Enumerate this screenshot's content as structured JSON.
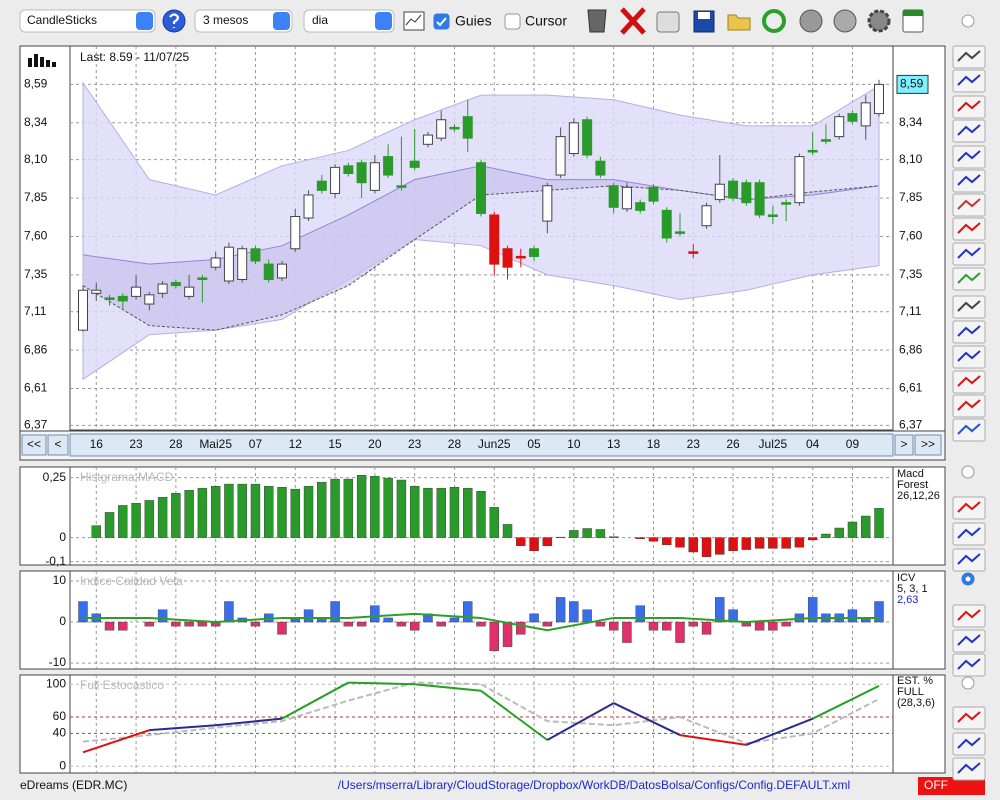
{
  "toolbar": {
    "chart_type": "CandleSticks",
    "period": "3 mesos",
    "interval": "dia",
    "guides_label": "Guies",
    "guides_checked": true,
    "cursor_label": "Cursor",
    "cursor_checked": false
  },
  "price_chart": {
    "type": "candlestick",
    "last": "Last: 8.59 - 11/07/25",
    "last_value": {
      "value": 8.59,
      "label": "8,59"
    },
    "ylim": [
      6.34,
      8.84
    ],
    "yticks": [
      {
        "value": 8.59,
        "label": "8,59"
      },
      {
        "value": 8.34,
        "label": "8,34"
      },
      {
        "value": 8.1,
        "label": "8,10"
      },
      {
        "value": 7.85,
        "label": "7,85"
      },
      {
        "value": 7.6,
        "label": "7,60"
      },
      {
        "value": 7.35,
        "label": "7,35"
      },
      {
        "value": 7.11,
        "label": "7,11"
      },
      {
        "value": 6.86,
        "label": "6,86"
      },
      {
        "value": 6.61,
        "label": "6,61"
      },
      {
        "value": 6.37,
        "label": "6,37"
      }
    ],
    "date_labels": [
      "16",
      "23",
      "28",
      "Mai25",
      "07",
      "12",
      "15",
      "20",
      "23",
      "28",
      "Jun25",
      "05",
      "10",
      "13",
      "18",
      "23",
      "26",
      "Jul25",
      "04",
      "09"
    ],
    "nav": [
      "<<",
      "<",
      ">",
      ">>"
    ],
    "open": [
      6.99,
      7.23,
      7.2,
      7.21,
      7.21,
      7.16,
      7.23,
      7.3,
      7.21,
      7.33,
      7.4,
      7.31,
      7.32,
      7.52,
      7.42,
      7.33,
      7.52,
      7.72,
      7.96,
      7.88,
      8.06,
      8.08,
      7.9,
      8.12,
      7.93,
      8.09,
      8.2,
      8.24,
      8.31,
      8.38,
      8.08,
      7.74,
      7.52,
      7.47,
      7.52,
      7.7,
      8.0,
      8.14,
      8.36,
      8.09,
      7.93,
      7.78,
      7.82,
      7.92,
      7.77,
      7.63,
      7.5,
      7.67,
      7.84,
      7.96,
      7.95,
      7.95,
      7.74,
      7.82,
      7.82,
      8.16,
      8.23,
      8.25,
      8.4,
      8.32,
      8.4
    ],
    "high": [
      7.28,
      7.3,
      7.22,
      7.23,
      7.35,
      7.24,
      7.31,
      7.32,
      7.35,
      7.35,
      7.5,
      7.56,
      7.54,
      7.54,
      7.45,
      7.44,
      7.78,
      7.9,
      8.0,
      8.07,
      8.08,
      8.1,
      8.13,
      8.2,
      8.25,
      8.3,
      8.28,
      8.42,
      8.33,
      8.49,
      8.1,
      7.76,
      7.54,
      7.52,
      7.54,
      7.95,
      8.31,
      8.37,
      8.38,
      8.12,
      7.95,
      7.95,
      7.84,
      7.94,
      7.79,
      7.75,
      7.55,
      7.82,
      8.13,
      7.98,
      7.97,
      7.97,
      7.8,
      7.84,
      8.14,
      8.28,
      8.33,
      8.4,
      8.42,
      8.52,
      8.62
    ],
    "low": [
      6.98,
      7.18,
      7.15,
      7.13,
      7.19,
      7.12,
      7.2,
      7.26,
      7.19,
      7.17,
      7.38,
      7.29,
      7.3,
      7.42,
      7.3,
      7.31,
      7.5,
      7.7,
      7.88,
      7.85,
      7.99,
      7.85,
      7.88,
      7.98,
      7.9,
      8.03,
      8.18,
      8.22,
      8.28,
      8.15,
      7.73,
      7.35,
      7.32,
      7.4,
      7.44,
      7.62,
      7.98,
      8.12,
      8.11,
      7.98,
      7.75,
      7.76,
      7.75,
      7.81,
      7.56,
      7.6,
      7.46,
      7.65,
      7.82,
      7.83,
      7.8,
      7.72,
      7.68,
      7.7,
      7.8,
      8.13,
      8.2,
      8.23,
      8.33,
      8.23,
      8.38
    ],
    "close": [
      7.25,
      7.25,
      7.19,
      7.18,
      7.27,
      7.22,
      7.29,
      7.28,
      7.27,
      7.32,
      7.46,
      7.53,
      7.52,
      7.44,
      7.32,
      7.42,
      7.73,
      7.87,
      7.9,
      8.05,
      8.01,
      7.95,
      8.08,
      8.0,
      7.92,
      8.05,
      8.26,
      8.36,
      8.3,
      8.24,
      7.75,
      7.42,
      7.4,
      7.46,
      7.47,
      7.93,
      8.25,
      8.34,
      8.13,
      8.0,
      7.79,
      7.92,
      7.77,
      7.83,
      7.59,
      7.62,
      7.49,
      7.8,
      7.94,
      7.85,
      7.82,
      7.74,
      7.73,
      7.81,
      8.12,
      8.15,
      8.22,
      8.38,
      8.35,
      8.47,
      8.59
    ],
    "fill": [
      "w",
      "w",
      "g",
      "g",
      "w",
      "w",
      "w",
      "g",
      "w",
      "g",
      "w",
      "w",
      "w",
      "g",
      "g",
      "w",
      "w",
      "w",
      "g",
      "w",
      "g",
      "g",
      "w",
      "g",
      "g",
      "g",
      "w",
      "w",
      "g",
      "g",
      "g",
      "r",
      "r",
      "r",
      "g",
      "w",
      "w",
      "w",
      "g",
      "g",
      "g",
      "w",
      "g",
      "g",
      "g",
      "g",
      "r",
      "w",
      "w",
      "g",
      "g",
      "g",
      "g",
      "g",
      "w",
      "g",
      "g",
      "w",
      "g",
      "w",
      "w"
    ],
    "palette": {
      "w": "#ffffff",
      "g": "#2a9a2a",
      "r": "#dd1111"
    },
    "bands": {
      "x": [
        0,
        5,
        10,
        15,
        20,
        25,
        30,
        35,
        40,
        45,
        50,
        55,
        60
      ],
      "upper": [
        8.6,
        7.97,
        7.87,
        8.06,
        8.16,
        8.36,
        8.52,
        8.52,
        8.49,
        8.39,
        8.32,
        8.32,
        8.58
      ],
      "middle": [
        7.48,
        7.42,
        7.45,
        7.54,
        7.74,
        7.97,
        8.06,
        7.97,
        7.97,
        7.9,
        7.84,
        7.87,
        7.93
      ],
      "lower": [
        6.67,
        6.96,
        6.99,
        7.06,
        7.32,
        7.58,
        7.54,
        7.35,
        7.28,
        7.19,
        7.25,
        7.35,
        7.41
      ],
      "average": [
        7.28,
        7.02,
        6.99,
        7.09,
        7.28,
        7.58,
        7.87,
        7.9,
        7.93,
        7.9,
        7.84,
        7.89,
        7.93
      ]
    }
  },
  "macd": {
    "type": "bar",
    "title": "Histgrama MACD",
    "legend": [
      "Macd",
      "Forest",
      "26,12,26"
    ],
    "ylim": [
      -0.11,
      0.29
    ],
    "yticks": [
      {
        "value": 0.25,
        "label": "0,25"
      },
      0,
      {
        "value": -0.1,
        "label": "-0,1"
      }
    ],
    "values": [
      null,
      0.05,
      0.105,
      0.134,
      0.143,
      0.155,
      0.168,
      0.185,
      0.197,
      0.206,
      0.214,
      0.223,
      0.223,
      0.223,
      0.214,
      0.21,
      0.202,
      0.214,
      0.231,
      0.244,
      0.244,
      0.26,
      0.256,
      0.248,
      0.24,
      0.214,
      0.206,
      0.206,
      0.21,
      0.206,
      0.193,
      0.126,
      0.055,
      -0.034,
      -0.055,
      -0.034,
      0.002,
      0.03,
      0.038,
      0.034,
      0.004,
      0,
      -0.005,
      -0.015,
      -0.03,
      -0.04,
      -0.06,
      -0.08,
      -0.07,
      -0.055,
      -0.05,
      -0.045,
      -0.045,
      -0.045,
      -0.04,
      -0.01,
      0.015,
      0.04,
      0.065,
      0.09,
      0.122
    ],
    "colors": {
      "positive": "#2a9a2a",
      "negative": "#dd1111"
    }
  },
  "icv": {
    "type": "bar",
    "title": "Indice Calidad Vela",
    "legend": [
      "ICV",
      "5, 3, 1",
      "2,63"
    ],
    "ylim": [
      -11.2,
      12.2
    ],
    "yticks": [
      10,
      0,
      -10
    ],
    "values": [
      5,
      2,
      -2,
      -2,
      0,
      -1,
      3,
      -1,
      -1,
      -1,
      -1,
      5,
      1,
      -1,
      2,
      -3,
      1,
      3,
      1,
      5,
      -1,
      -1,
      4,
      1,
      -1,
      -2,
      2,
      -1,
      1,
      5,
      -1,
      -7,
      -6,
      -3,
      2,
      -1,
      6,
      5,
      3,
      -1,
      -2,
      -5,
      4,
      -2,
      -2,
      -5,
      -1,
      -3,
      6,
      3,
      -1,
      -2,
      -2,
      -1,
      2,
      6,
      2,
      2,
      3,
      1,
      5
    ],
    "colors": {
      "positive": "#3a6ee8",
      "negative": "#e0306a"
    },
    "signal": {
      "x": [
        0,
        5,
        10,
        15,
        20,
        25,
        30,
        35,
        40,
        45,
        50,
        55,
        60
      ],
      "values": [
        1,
        1,
        0,
        1,
        1,
        2,
        1,
        -2,
        1,
        1,
        0,
        1,
        1
      ],
      "color": "#2aa02a"
    }
  },
  "stochastic": {
    "type": "line",
    "title": "Full Estocastico",
    "legend": [
      "EST. %",
      "FULL",
      "(28,3,6)"
    ],
    "ylim": [
      -7,
      110
    ],
    "yticks": [
      100,
      60,
      40,
      0
    ],
    "x": [
      0,
      5,
      10,
      15,
      20,
      25,
      30,
      35,
      40,
      45,
      50,
      55,
      60
    ],
    "k": [
      17,
      44,
      50,
      58,
      102,
      100,
      92,
      32,
      77,
      38,
      26,
      58,
      98
    ],
    "d": [
      30,
      38,
      47,
      55,
      80,
      102,
      100,
      55,
      50,
      60,
      28,
      40,
      82
    ]
  },
  "status": {
    "symbol": "eDreams (EDR.MC)",
    "config_path": "/Users/mserra/Library/CloudStorage/Dropbox/WorkDB/DatosBolsa/Configs/Config.DEFAULT.xml",
    "mode": "OFF"
  }
}
